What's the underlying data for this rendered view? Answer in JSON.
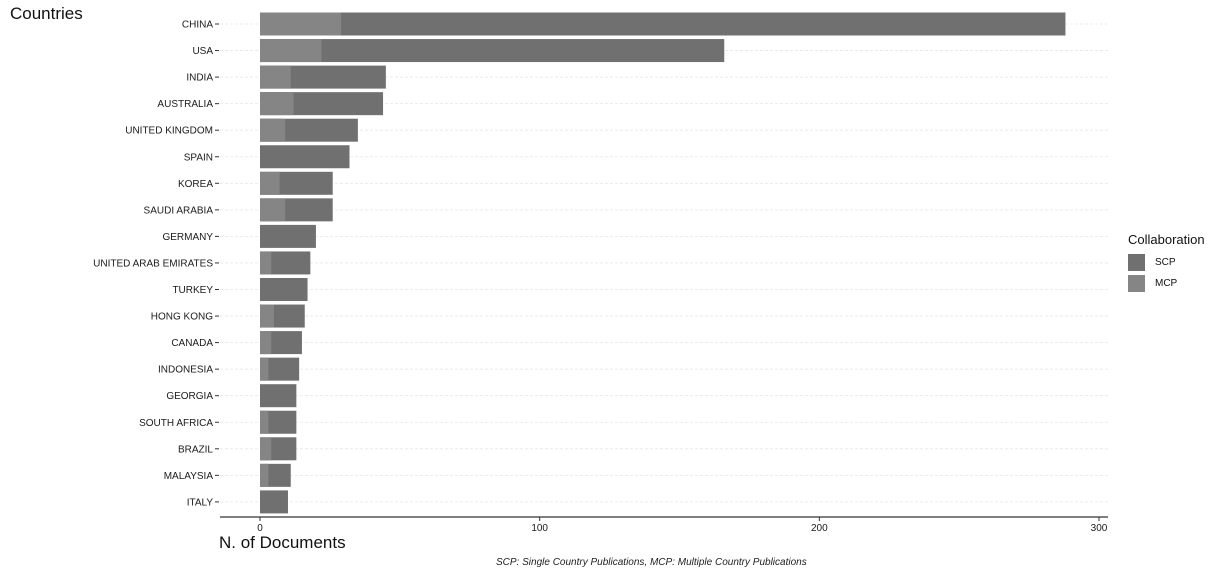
{
  "chart_data": {
    "type": "bar",
    "orientation": "horizontal",
    "stacked": true,
    "title": "Countries",
    "xlabel": "N. of Documents",
    "caption": "SCP: Single Country Publications, MCP: Multiple Country Publications",
    "xlim": [
      0,
      300
    ],
    "x_ticks": [
      0,
      100,
      200,
      300
    ],
    "grid": true,
    "legend_title": "Collaboration",
    "legend_position": "right",
    "categories": [
      "CHINA",
      "USA",
      "INDIA",
      "AUSTRALIA",
      "UNITED KINGDOM",
      "SPAIN",
      "KOREA",
      "SAUDI ARABIA",
      "GERMANY",
      "UNITED ARAB EMIRATES",
      "TURKEY",
      "HONG KONG",
      "CANADA",
      "INDONESIA",
      "GEORGIA",
      "SOUTH AFRICA",
      "BRAZIL",
      "MALAYSIA",
      "ITALY"
    ],
    "series": [
      {
        "name": "SCP",
        "color": "#707070",
        "values": [
          259,
          144,
          34,
          32,
          26,
          32,
          19,
          17,
          20,
          14,
          17,
          11,
          11,
          11,
          13,
          10,
          9,
          8,
          10
        ]
      },
      {
        "name": "MCP",
        "color": "#858585",
        "values": [
          29,
          22,
          11,
          12,
          9,
          0,
          7,
          9,
          0,
          4,
          0,
          5,
          4,
          3,
          0,
          3,
          4,
          3,
          0
        ]
      }
    ]
  }
}
